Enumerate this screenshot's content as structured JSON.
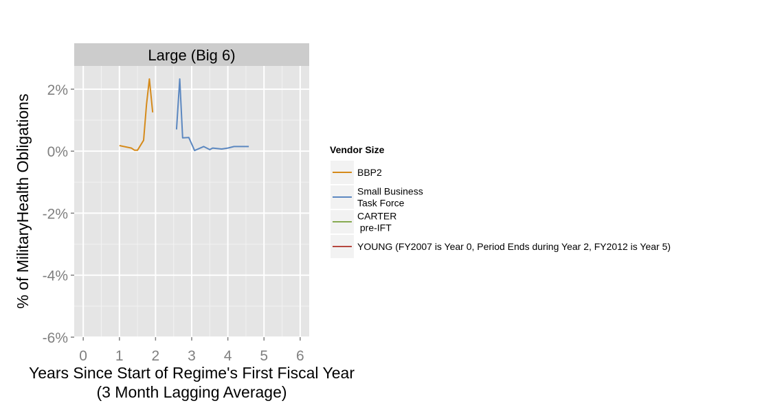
{
  "chart_data": {
    "type": "line",
    "panel_title": "Large (Big 6)",
    "xlabel": [
      "Years Since Start of Regime's First Fiscal Year",
      "(3 Month Lagging Average)"
    ],
    "ylabel": "% of MilitaryHealth Obligations",
    "xlim": [
      -0.25,
      6.25
    ],
    "ylim": [
      -6.0,
      2.75
    ],
    "x_ticks": [
      0,
      1,
      2,
      3,
      4,
      5,
      6
    ],
    "x_tick_labels": [
      "0",
      "1",
      "2",
      "3",
      "4",
      "5",
      "6"
    ],
    "y_ticks": [
      -6,
      -4,
      -2,
      0,
      2
    ],
    "y_tick_labels": [
      "-6%",
      "-4%",
      "-2%",
      "0%",
      "2%"
    ],
    "grid": true,
    "legend": {
      "title": "Vendor Size",
      "position": "right",
      "entries": [
        {
          "lines": [
            "BBP2"
          ],
          "color": "#d58a1a"
        },
        {
          "lines": [
            "Small Business",
            "Task Force"
          ],
          "color": "#5b87c0"
        },
        {
          "lines": [
            "CARTER",
            " pre-IFT"
          ],
          "color": "#86a94f"
        },
        {
          "lines": [
            "YOUNG (FY2007 is Year 0, Period Ends during Year 2, FY2012 is Year 5)"
          ],
          "color": "#b6473f"
        }
      ]
    },
    "series": [
      {
        "name": "BBP2",
        "color": "#d58a1a",
        "x": [
          1.0,
          1.33,
          1.42,
          1.5,
          1.67,
          1.75,
          1.83,
          1.92
        ],
        "y": [
          0.18,
          0.1,
          0.03,
          0.03,
          0.35,
          1.5,
          2.33,
          1.25
        ]
      },
      {
        "name": "Small Business Task Force",
        "color": "#5b87c0",
        "x": [
          2.58,
          2.67,
          2.75,
          2.92,
          3.08,
          3.33,
          3.5,
          3.58,
          3.83,
          4.0,
          4.17,
          4.58
        ],
        "y": [
          0.7,
          2.33,
          0.43,
          0.44,
          0.02,
          0.15,
          0.05,
          0.1,
          0.07,
          0.1,
          0.15,
          0.15
        ]
      }
    ]
  }
}
